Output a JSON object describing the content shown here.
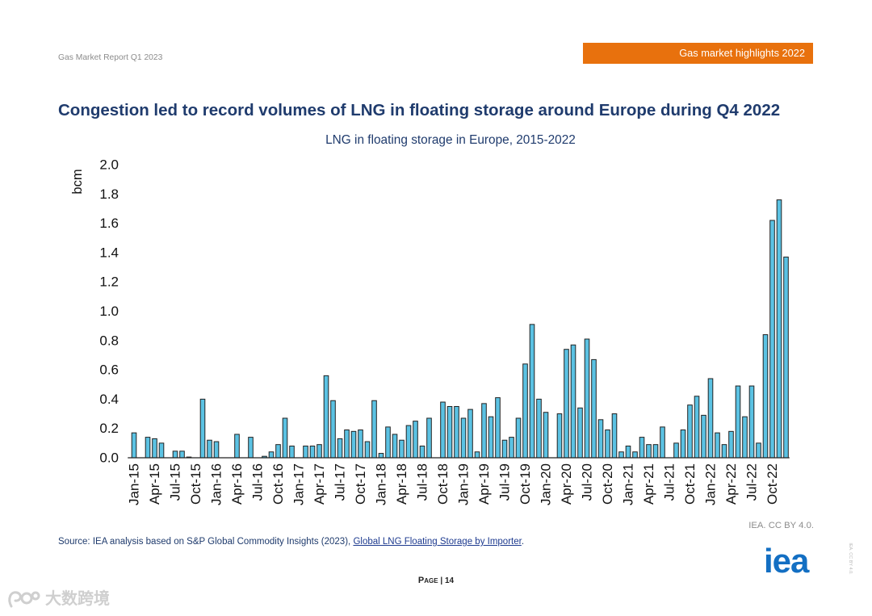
{
  "header": {
    "report_title": "Gas Market Report Q1 2023",
    "section_banner": "Gas market highlights 2022"
  },
  "page_title": "Congestion led to record volumes of LNG in floating storage around Europe during Q4 2022",
  "chart_data": {
    "type": "bar",
    "title": "LNG in floating storage in Europe, 2015-2022",
    "xlabel": "",
    "ylabel": "bcm",
    "ylim": [
      0,
      2.0
    ],
    "yticks": [
      0.0,
      0.2,
      0.4,
      0.6,
      0.8,
      1.0,
      1.2,
      1.4,
      1.6,
      1.8,
      2.0
    ],
    "ytick_labels": [
      "0.0",
      "0.2",
      "0.4",
      "0.6",
      "0.8",
      "1.0",
      "1.2",
      "1.4",
      "1.6",
      "1.8",
      "2.0"
    ],
    "xtick_interval_months": 3,
    "xtick_labels": [
      "Jan-15",
      "Apr-15",
      "Jul-15",
      "Oct-15",
      "Jan-16",
      "Apr-16",
      "Jul-16",
      "Oct-16",
      "Jan-17",
      "Apr-17",
      "Jul-17",
      "Oct-17",
      "Jan-18",
      "Apr-18",
      "Jul-18",
      "Oct-18",
      "Jan-19",
      "Apr-19",
      "Jul-19",
      "Oct-19",
      "Jan-20",
      "Apr-20",
      "Jul-20",
      "Oct-20",
      "Jan-21",
      "Apr-21",
      "Jul-21",
      "Oct-21",
      "Jan-22",
      "Apr-22",
      "Jul-22",
      "Oct-22"
    ],
    "values_by_year": [
      {
        "year": 2015,
        "values": [
          0.17,
          0,
          0.14,
          0.13,
          0.1,
          0,
          0.045,
          0.045,
          0.005,
          0,
          0.4,
          0.12
        ]
      },
      {
        "year": 2016,
        "values": [
          0.11,
          0,
          0,
          0.16,
          0,
          0.14,
          0,
          0.01,
          0.04,
          0.09,
          0.27,
          0.08
        ]
      },
      {
        "year": 2017,
        "values": [
          0,
          0.08,
          0.08,
          0.09,
          0.56,
          0.39,
          0.13,
          0.19,
          0.18,
          0.19,
          0.11,
          0.39
        ]
      },
      {
        "year": 2018,
        "values": [
          0.03,
          0.21,
          0.16,
          0.12,
          0.22,
          0.25,
          0.08,
          0.27,
          0,
          0.38,
          0.35,
          0.35
        ]
      },
      {
        "year": 2019,
        "values": [
          0.27,
          0.33,
          0.04,
          0.37,
          0.28,
          0.41,
          0.12,
          0.14,
          0.27,
          0.64,
          0.91,
          0.4
        ]
      },
      {
        "year": 2020,
        "values": [
          0.31,
          0,
          0.3,
          0.74,
          0.77,
          0.34,
          0.81,
          0.67,
          0.26,
          0.19,
          0.3,
          0.04
        ]
      },
      {
        "year": 2021,
        "values": [
          0.08,
          0.04,
          0.14,
          0.09,
          0.09,
          0.21,
          0,
          0.1,
          0.19,
          0.36,
          0.42,
          0.29
        ]
      },
      {
        "year": 2022,
        "values": [
          0.54,
          0.17,
          0.09,
          0.18,
          0.49,
          0.28,
          0.49,
          0.1,
          0.84,
          1.62,
          1.76,
          1.37
        ]
      }
    ],
    "grid": false,
    "legend": false
  },
  "footer": {
    "license": "IEA. CC BY 4.0.",
    "source_prefix": "Source: IEA analysis based on S&P Global Commodity Insights (2023), ",
    "source_link": "Global LNG Floating Storage by Importer",
    "source_suffix": ".",
    "logo": "iea",
    "license_vertical": "IEA. CC BY 4.0.",
    "page_label": "Page",
    "page_separator": "|",
    "page_number": "14"
  },
  "watermark": {
    "text": "大数跨境",
    "icon": "watermark-logo-icon"
  },
  "colors": {
    "banner": "#e8710d",
    "title": "#1f3b6d",
    "bar_fill": "#5bc2e3",
    "bar_stroke": "#222222",
    "axis": "#222222",
    "logo": "#136fc3"
  }
}
